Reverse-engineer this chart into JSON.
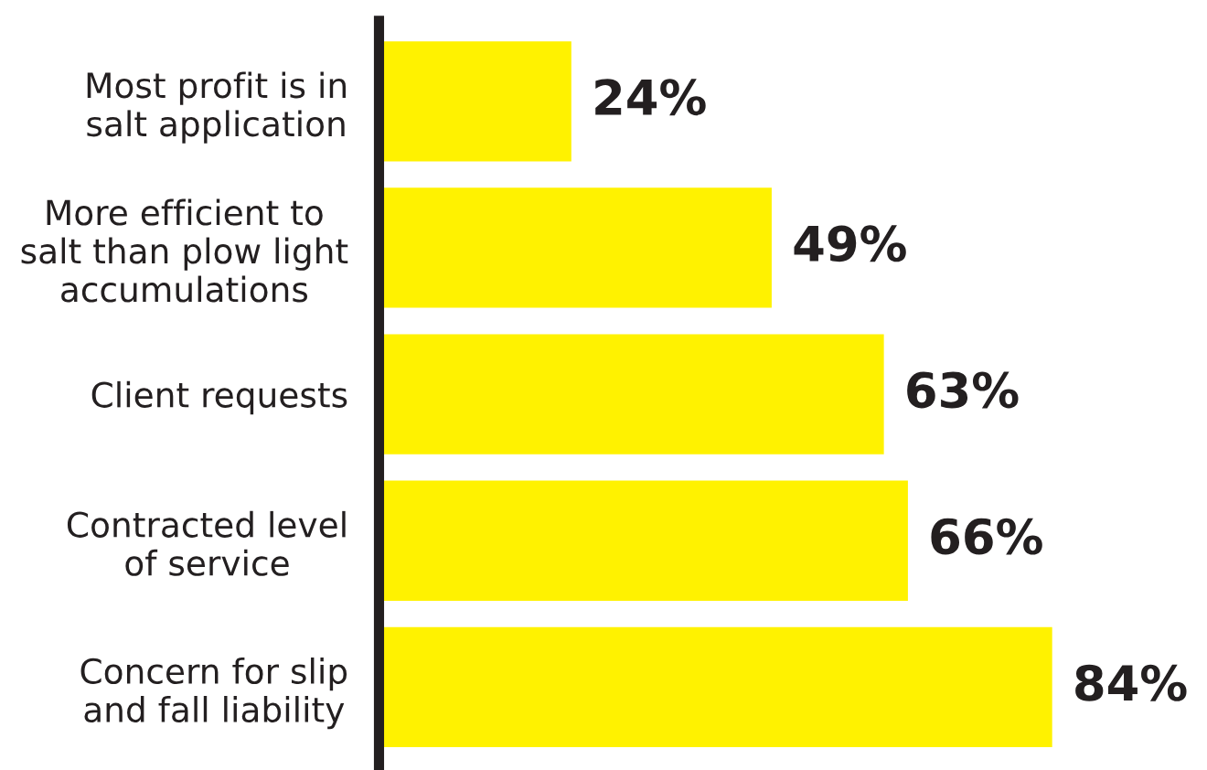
{
  "chart_data": {
    "type": "bar",
    "orientation": "horizontal",
    "categories": [
      "Most profit is in\nsalt application",
      "More efficient to\nsalt than plow light\naccumulations",
      "Client requests",
      "Contracted level\nof service",
      "Concern for slip\nand fall liability"
    ],
    "values": [
      24,
      49,
      63,
      66,
      84
    ],
    "value_labels": [
      "24%",
      "49%",
      "63%",
      "66%",
      "84%"
    ],
    "color": "#fff200",
    "grid": false,
    "legend": false,
    "tick_labels": "y"
  }
}
